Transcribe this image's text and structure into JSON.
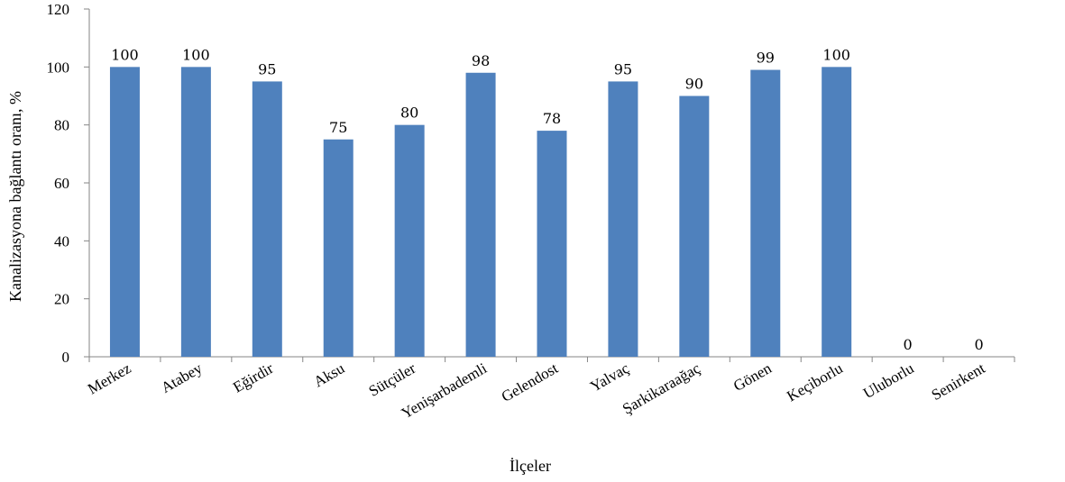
{
  "chart_data": {
    "type": "bar",
    "categories": [
      "Merkez",
      "Atabey",
      "Eğirdir",
      "Aksu",
      "Sütçüler",
      "Yenişarbademli",
      "Gelendost",
      "Yalvaç",
      "Şarkikaraağaç",
      "Gönen",
      "Keçiborlu",
      "Uluborlu",
      "Senirkent"
    ],
    "values": [
      100,
      100,
      95,
      75,
      80,
      98,
      78,
      95,
      90,
      99,
      100,
      0,
      0
    ],
    "title": "",
    "xlabel": "İlçeler",
    "ylabel": "Kanalizasyona  bağlantı  oranı, %",
    "ylim": [
      0,
      120
    ],
    "yticks": [
      0,
      20,
      40,
      60,
      80,
      100,
      120
    ],
    "grid": false,
    "legend": "none",
    "bar_color": "#4F81BD",
    "show_data_labels": true
  }
}
